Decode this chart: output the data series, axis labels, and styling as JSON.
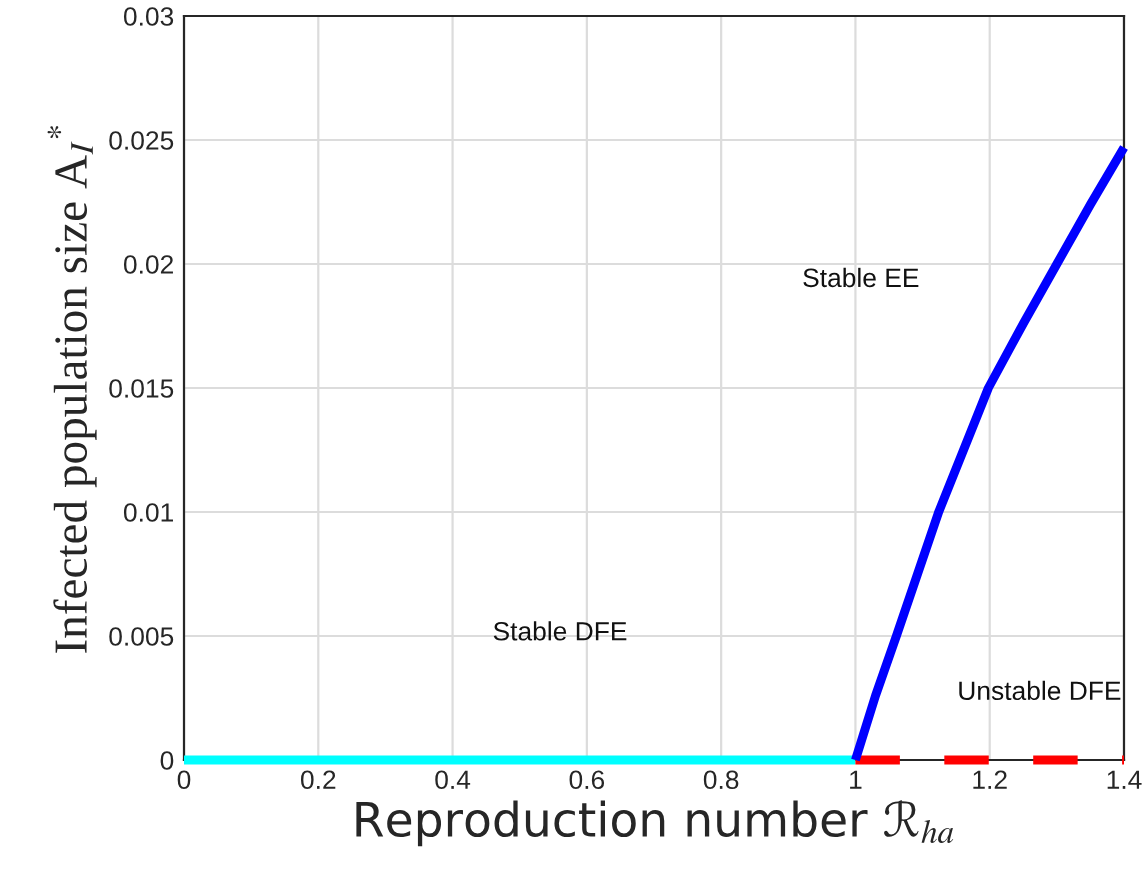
{
  "chart_data": {
    "type": "line",
    "xlabel": "Reproduction number ℛ$_{ha}$",
    "ylabel": "Infected population size A$_{I}$$^{*}$",
    "xlim": [
      0,
      1.4
    ],
    "xticks": [
      0,
      0.2,
      0.4,
      0.6,
      0.8,
      1,
      1.2,
      1.4
    ],
    "ylim": [
      0,
      0.03
    ],
    "yticks": [
      0,
      0.005,
      0.01,
      0.015,
      0.02,
      0.025,
      0.03
    ],
    "grid": true,
    "series": [
      {
        "color": "#00ffff",
        "line_style": "solid",
        "x": [
          0,
          1
        ],
        "values": [
          0,
          0
        ]
      },
      {
        "color": "#ff0000",
        "line_style": "dashed",
        "x": [
          1,
          1.4
        ],
        "values": [
          0,
          0
        ]
      },
      {
        "color": "#0000ff",
        "line_style": "solid",
        "x": [
          1,
          1.03,
          1.061,
          1.124,
          1.198,
          1.25,
          1.3,
          1.35,
          1.4
        ],
        "values": [
          0,
          0.0026,
          0.005,
          0.01,
          0.015,
          0.0176,
          0.02,
          0.0224,
          0.0247
        ]
      }
    ],
    "annotations": [
      "Stable EE",
      "Stable DFE",
      "Unstable DFE"
    ]
  }
}
